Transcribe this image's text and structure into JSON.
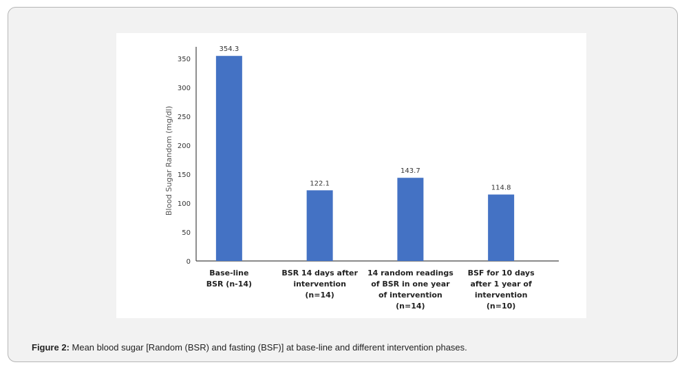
{
  "caption": {
    "label": "Figure 2:",
    "text": " Mean blood sugar [Random (BSR) and fasting (BSF)] at base-line and different intervention phases."
  },
  "chart_data": {
    "type": "bar",
    "ylabel": "Blood Sugar Random (mg/dl)",
    "xlabel": "",
    "ylim": [
      0,
      370
    ],
    "yticks": [
      0,
      50,
      100,
      150,
      200,
      250,
      300,
      350
    ],
    "grid": false,
    "bar_color": "#4472c4",
    "categories": [
      [
        "Base-line",
        "BSR (n-14)"
      ],
      [
        "BSR 14 days after",
        "intervention",
        "(n=14)"
      ],
      [
        "14 random readings",
        "of BSR in one year",
        "of intervention",
        "(n=14)"
      ],
      [
        "BSF for 10 days",
        "after 1 year of",
        "intervention",
        "(n=10)"
      ]
    ],
    "values": [
      354.3,
      122.1,
      143.7,
      114.8
    ],
    "data_labels": [
      "354.3",
      "122.1",
      "143.7",
      "114.8"
    ]
  }
}
